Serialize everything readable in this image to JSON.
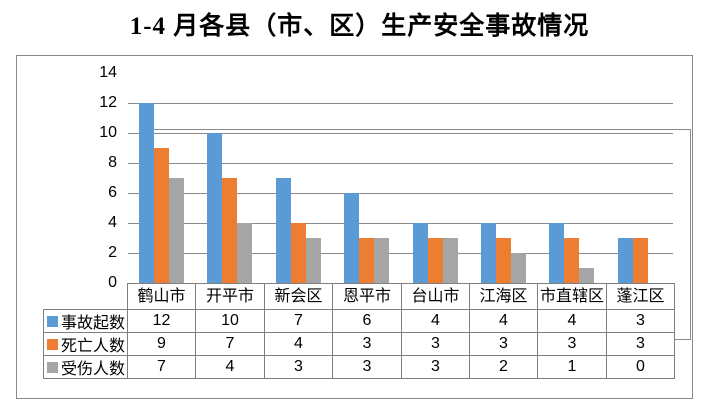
{
  "title": "1-4 月各县（市、区）生产安全事故情况",
  "colors": {
    "series_blue": "#5B9BD5",
    "series_orange": "#ED7D31",
    "series_gray": "#A5A5A5",
    "gridline": "#898989",
    "frame_border": "#898989",
    "table_border": "#7F7F7F",
    "text": "#000000",
    "background": "#FFFFFF"
  },
  "chart_data": {
    "type": "bar",
    "title": "1-4 月各县（市、区）生产安全事故情况",
    "categories": [
      "鹤山市",
      "开平市",
      "新会区",
      "恩平市",
      "台山市",
      "江海区",
      "市直辖区",
      "蓬江区"
    ],
    "series": [
      {
        "name": "事故起数",
        "color": "#5B9BD5",
        "values": [
          12,
          10,
          7,
          6,
          4,
          4,
          4,
          3
        ]
      },
      {
        "name": "死亡人数",
        "color": "#ED7D31",
        "values": [
          9,
          7,
          4,
          3,
          3,
          3,
          3,
          3
        ]
      },
      {
        "name": "受伤人数",
        "color": "#A5A5A5",
        "values": [
          7,
          4,
          3,
          3,
          3,
          2,
          1,
          0
        ]
      }
    ],
    "xlabel": "",
    "ylabel": "",
    "ylim": [
      0,
      14
    ],
    "ytick_step": 2,
    "grid": "on",
    "legend_position": "data-table-left"
  }
}
